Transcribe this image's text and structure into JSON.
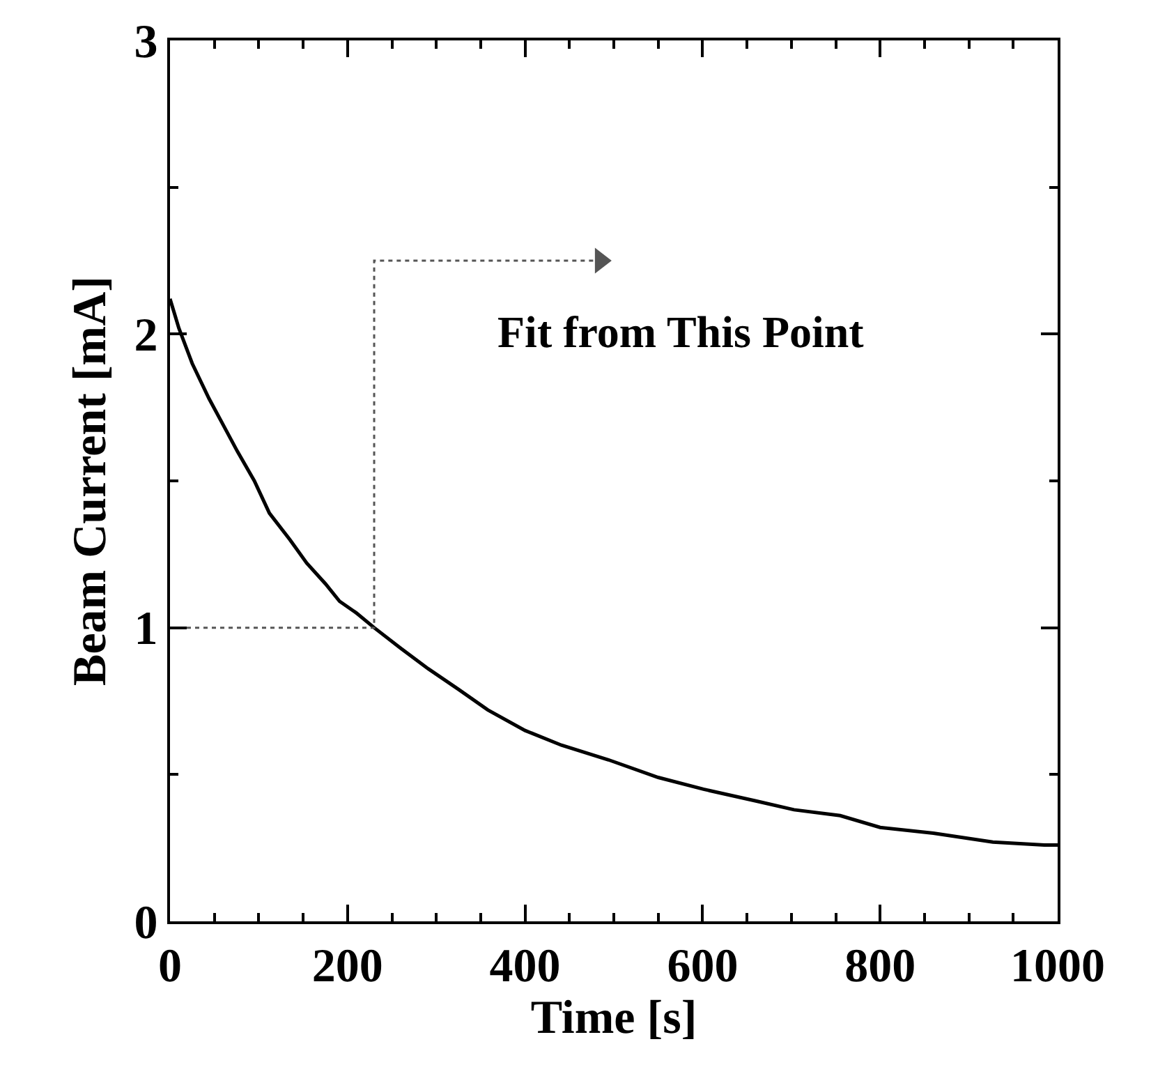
{
  "chart_data": {
    "type": "line",
    "xlabel": "Time [s]",
    "ylabel": "Beam Current [mA]",
    "x": [
      0,
      10,
      25,
      44,
      60,
      76,
      95,
      112,
      135,
      154,
      175,
      191,
      210,
      230,
      260,
      291,
      325,
      358,
      400,
      441,
      494,
      550,
      601,
      660,
      703,
      755,
      800,
      860,
      927,
      985,
      1000
    ],
    "series": [
      {
        "color": "#000000",
        "values": [
          2.12,
          2.02,
          1.9,
          1.78,
          1.69,
          1.6,
          1.5,
          1.39,
          1.3,
          1.22,
          1.15,
          1.09,
          1.05,
          1.0,
          0.93,
          0.86,
          0.79,
          0.72,
          0.65,
          0.6,
          0.55,
          0.49,
          0.45,
          0.41,
          0.38,
          0.36,
          0.32,
          0.3,
          0.27,
          0.26,
          0.26
        ]
      },
      {
        "type": "line",
        "color": "#555555",
        "line_style": "dotted",
        "x": [
          0,
          230,
          230,
          485
        ],
        "values": [
          1.0,
          1.0,
          2.25,
          2.25
        ]
      }
    ],
    "xlim": [
      0,
      1000
    ],
    "ylim": [
      0,
      3
    ],
    "xticks": [
      0,
      200,
      400,
      600,
      800,
      1000,
      {
        "value": 50,
        "label": null
      },
      {
        "value": 100,
        "label": null
      },
      {
        "value": 150,
        "label": null
      },
      {
        "value": 250,
        "label": null
      },
      {
        "value": 300,
        "label": null
      },
      {
        "value": 350,
        "label": null
      },
      {
        "value": 450,
        "label": null
      },
      {
        "value": 500,
        "label": null
      },
      {
        "value": 550,
        "label": null
      },
      {
        "value": 650,
        "label": null
      },
      {
        "value": 700,
        "label": null
      },
      {
        "value": 750,
        "label": null
      },
      {
        "value": 850,
        "label": null
      },
      {
        "value": 900,
        "label": null
      },
      {
        "value": 950,
        "label": null
      }
    ],
    "yticks": [
      0,
      1,
      2,
      3,
      {
        "value": 0.5,
        "label": null
      },
      {
        "value": 1.5,
        "label": null
      },
      {
        "value": 2.5,
        "label": null
      }
    ],
    "annotations": [
      "Fit from This Point"
    ],
    "marker": "none",
    "line_style": "solid"
  }
}
